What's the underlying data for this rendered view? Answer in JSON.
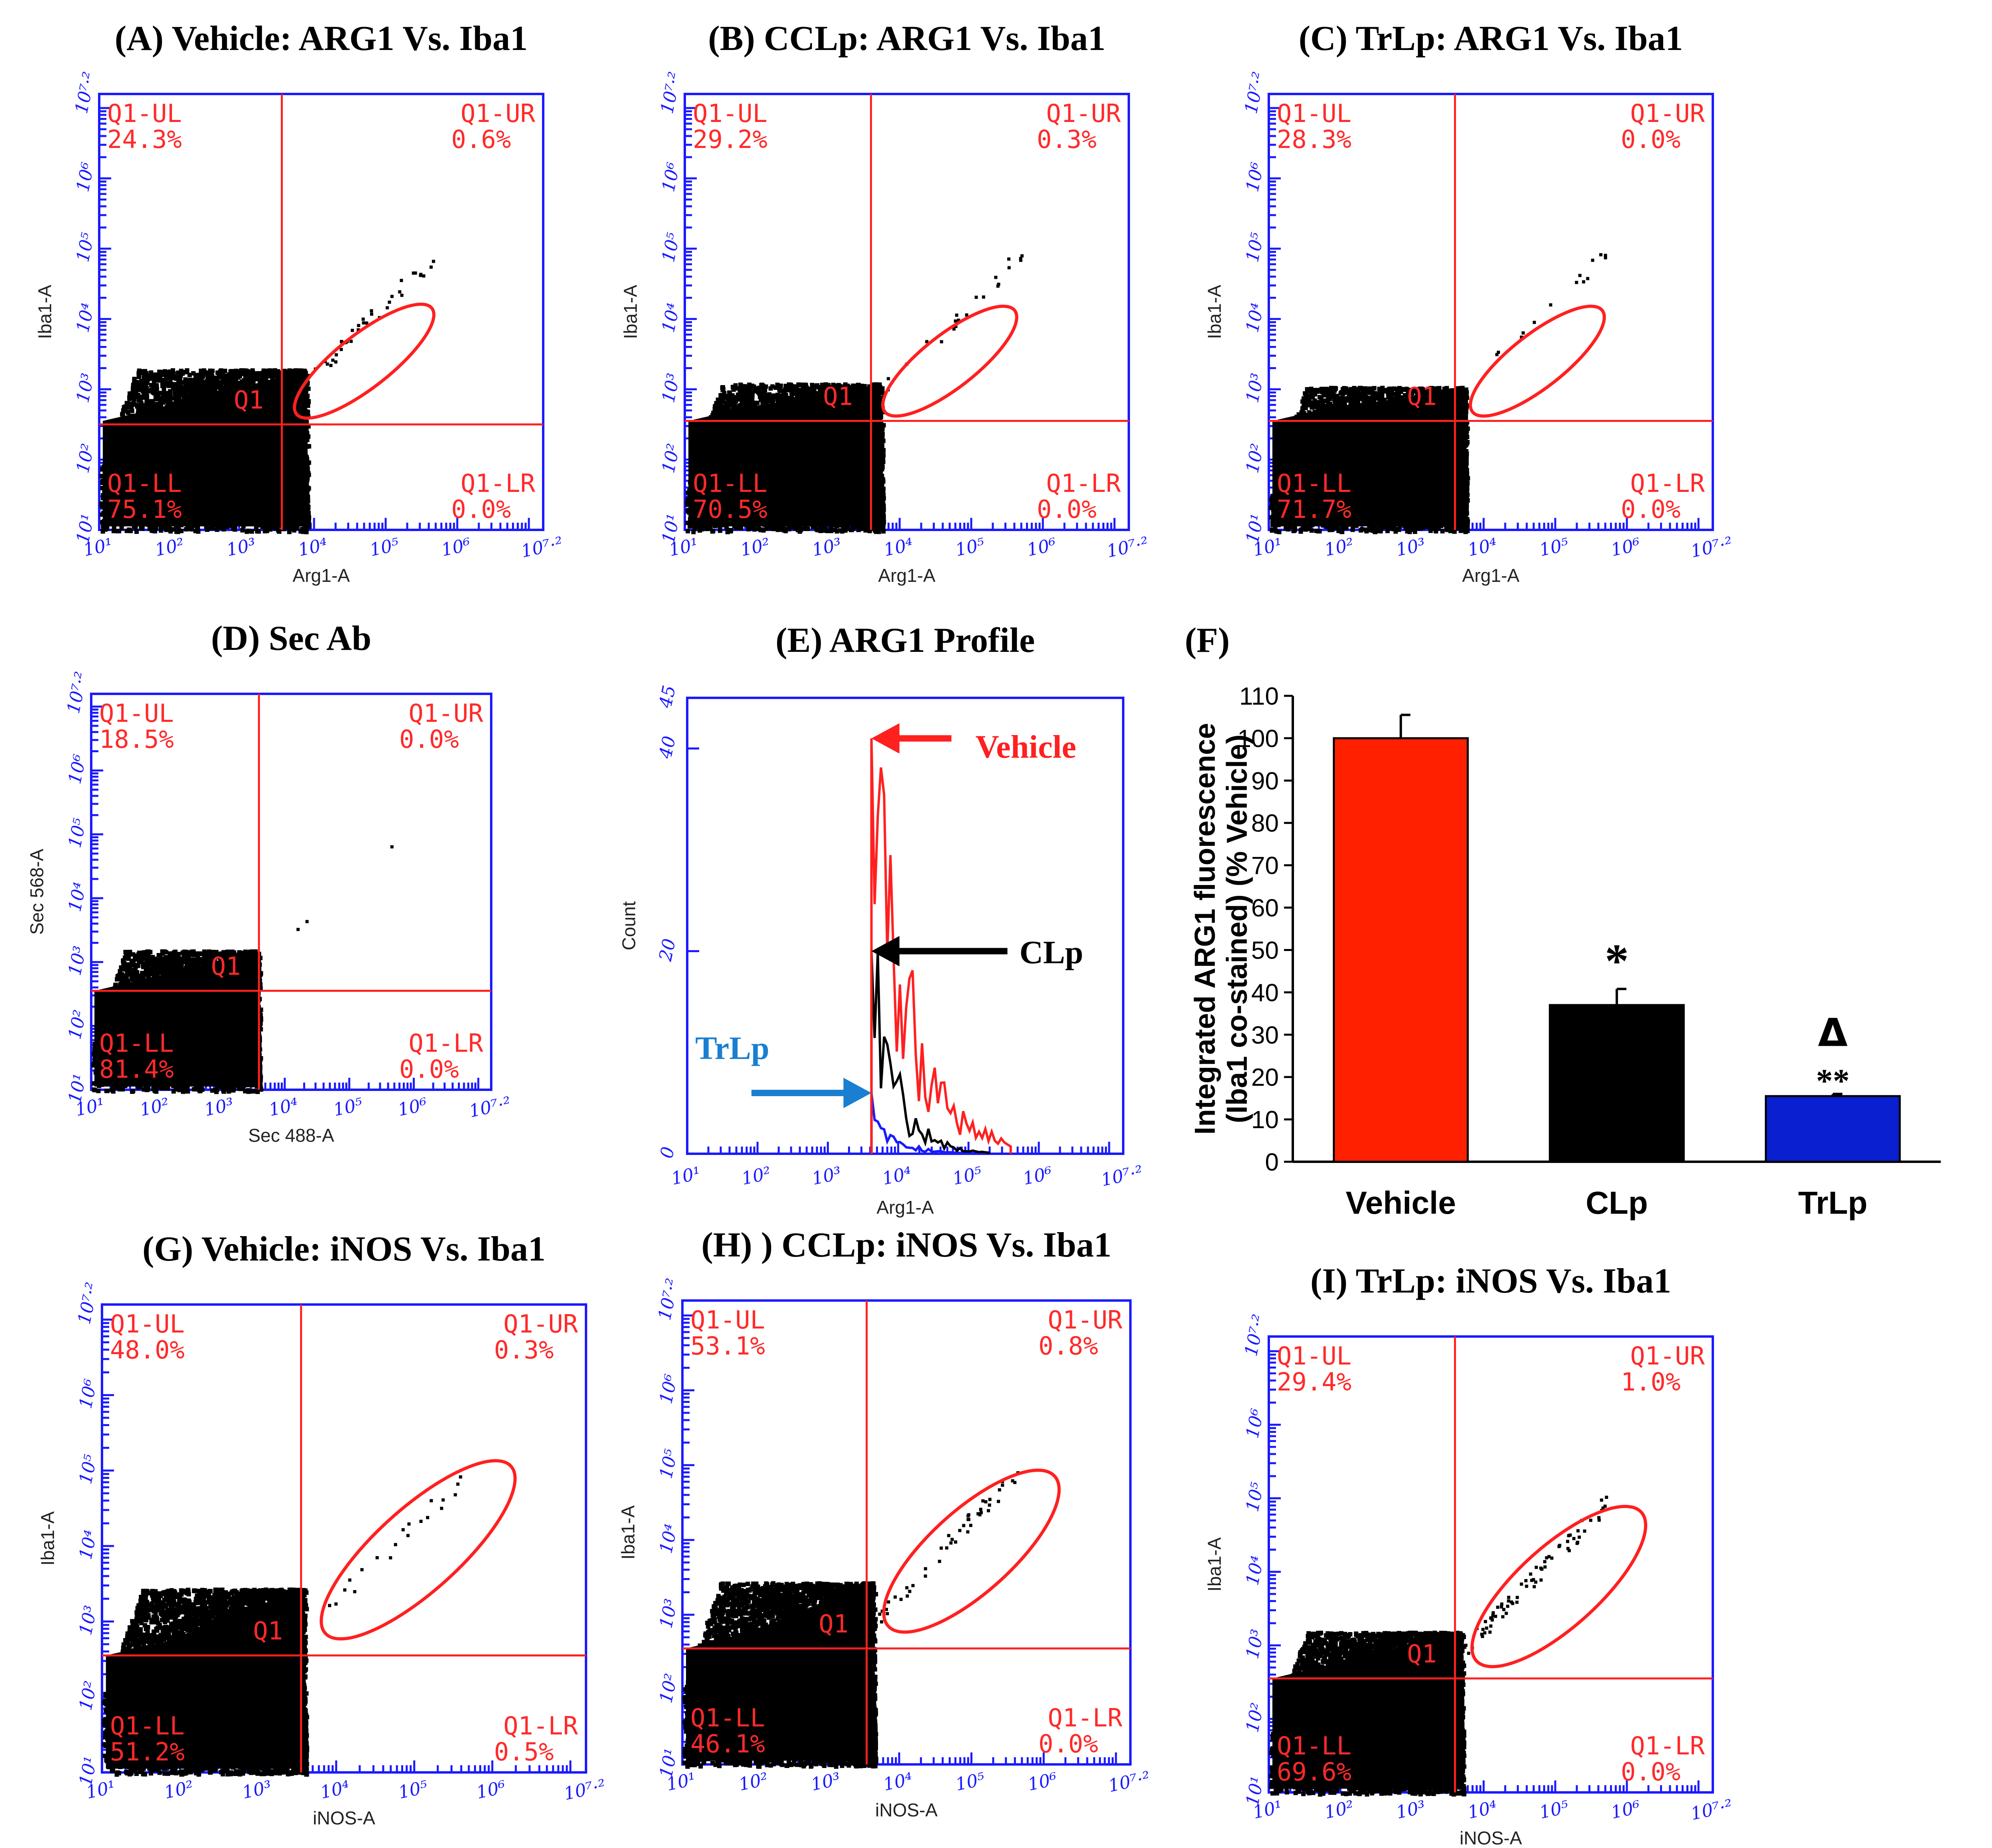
{
  "chart_data": [
    {
      "id": "A",
      "type": "scatter",
      "title": "(A) Vehicle: ARG1 Vs. Iba1",
      "xlabel": "Arg1-A",
      "ylabel": "Iba1-A",
      "xlim": [
        1,
        7.2
      ],
      "ylim": [
        1,
        7.2
      ],
      "x_ticks": [
        "10^1",
        "10^2",
        "10^3",
        "10^4",
        "10^5",
        "10^6",
        "10^7.2"
      ],
      "y_ticks": [
        "10^1",
        "10^2",
        "10^3",
        "10^4",
        "10^5",
        "10^6",
        "10^7.2"
      ],
      "gate": {
        "x": 3.55,
        "y": 2.5,
        "label": "Q1"
      },
      "quadrants": {
        "UL": {
          "name": "Q1-UL",
          "value": "24.3%"
        },
        "UR": {
          "name": "Q1-UR",
          "value": "0.6%"
        },
        "LL": {
          "name": "Q1-LL",
          "value": "75.1%"
        },
        "LR": {
          "name": "Q1-LR",
          "value": "0.0%"
        }
      },
      "ellipse": {
        "cx": 4.7,
        "cy": 3.4,
        "rx": 1.2,
        "ry": 0.38,
        "angle_deg": 38
      },
      "cloud": {
        "xmax": 3.9,
        "ytop": 3.3,
        "density": 1.0,
        "seed": 11
      },
      "diag_points": 42
    },
    {
      "id": "B",
      "type": "scatter",
      "title": "(B) CCLp: ARG1 Vs. Iba1",
      "xlabel": "Arg1-A",
      "ylabel": "Iba1-A",
      "xlim": [
        1,
        7.2
      ],
      "ylim": [
        1,
        7.2
      ],
      "x_ticks": [
        "10^1",
        "10^2",
        "10^3",
        "10^4",
        "10^5",
        "10^6",
        "10^7.2"
      ],
      "y_ticks": [
        "10^1",
        "10^2",
        "10^3",
        "10^4",
        "10^5",
        "10^6",
        "10^7.2"
      ],
      "gate": {
        "x": 3.6,
        "y": 2.55,
        "label": "Q1"
      },
      "quadrants": {
        "UL": {
          "name": "Q1-UL",
          "value": "29.2%"
        },
        "UR": {
          "name": "Q1-UR",
          "value": "0.3%"
        },
        "LL": {
          "name": "Q1-LL",
          "value": "70.5%"
        },
        "LR": {
          "name": "Q1-LR",
          "value": "0.0%"
        }
      },
      "ellipse": {
        "cx": 4.7,
        "cy": 3.4,
        "rx": 1.15,
        "ry": 0.38,
        "angle_deg": 38
      },
      "cloud": {
        "xmax": 3.75,
        "ytop": 3.1,
        "density": 0.9,
        "seed": 23
      },
      "diag_points": 22
    },
    {
      "id": "C",
      "type": "scatter",
      "title": "(C) TrLp: ARG1 Vs. Iba1",
      "xlabel": "Arg1-A",
      "ylabel": "Iba1-A",
      "xlim": [
        1,
        7.2
      ],
      "ylim": [
        1,
        7.2
      ],
      "x_ticks": [
        "10^1",
        "10^2",
        "10^3",
        "10^4",
        "10^5",
        "10^6",
        "10^7.2"
      ],
      "y_ticks": [
        "10^1",
        "10^2",
        "10^3",
        "10^4",
        "10^5",
        "10^6",
        "10^7.2"
      ],
      "gate": {
        "x": 3.6,
        "y": 2.55,
        "label": "Q1"
      },
      "quadrants": {
        "UL": {
          "name": "Q1-UL",
          "value": "28.3%"
        },
        "UR": {
          "name": "Q1-UR",
          "value": "0.0%"
        },
        "LL": {
          "name": "Q1-LL",
          "value": "71.7%"
        },
        "LR": {
          "name": "Q1-LR",
          "value": "0.0%"
        }
      },
      "ellipse": {
        "cx": 4.75,
        "cy": 3.4,
        "rx": 1.15,
        "ry": 0.38,
        "angle_deg": 38
      },
      "cloud": {
        "xmax": 3.75,
        "ytop": 3.05,
        "density": 0.9,
        "seed": 37
      },
      "diag_points": 14
    },
    {
      "id": "D",
      "type": "scatter",
      "title": "(D) Sec Ab",
      "xlabel": "Sec 488-A",
      "ylabel": "Sec 568-A",
      "xlim": [
        1,
        7.2
      ],
      "ylim": [
        1,
        7.2
      ],
      "x_ticks": [
        "10^1",
        "10^2",
        "10^3",
        "10^4",
        "10^5",
        "10^6",
        "10^7.2"
      ],
      "y_ticks": [
        "10^1",
        "10^2",
        "10^3",
        "10^4",
        "10^5",
        "10^6",
        "10^7.2"
      ],
      "gate": {
        "x": 3.6,
        "y": 2.55,
        "label": "Q1"
      },
      "quadrants": {
        "UL": {
          "name": "Q1-UL",
          "value": "18.5%"
        },
        "UR": {
          "name": "Q1-UR",
          "value": "0.0%"
        },
        "LL": {
          "name": "Q1-LL",
          "value": "81.4%"
        },
        "LR": {
          "name": "Q1-LR",
          "value": "0.0%"
        }
      },
      "ellipse": null,
      "cloud": {
        "xmax": 3.6,
        "ytop": 3.2,
        "density": 0.75,
        "seed": 51
      },
      "diag_points": 3
    },
    {
      "id": "E",
      "type": "line",
      "title": "(E) ARG1 Profile",
      "xlabel": "Arg1-A",
      "ylabel": "Count",
      "xlim": [
        1,
        7.2
      ],
      "ylim": [
        0,
        45
      ],
      "x_ticks": [
        "10^1",
        "10^2",
        "10^3",
        "10^4",
        "10^5",
        "10^6",
        "10^7.2"
      ],
      "y_ticks": [
        0,
        20,
        40,
        45
      ],
      "series": [
        {
          "name": "Vehicle",
          "color": "#ff2020",
          "peak_x": 3.62,
          "peak": 41,
          "decay": 0.55,
          "end_x": 5.6
        },
        {
          "name": "CLp",
          "color": "#000000",
          "peak_x": 3.62,
          "peak": 20,
          "decay": 0.35,
          "end_x": 5.3
        },
        {
          "name": "TrLp",
          "color": "#1a1aff",
          "peak_x": 3.62,
          "peak": 6,
          "decay": 0.3,
          "end_x": 5.2
        }
      ],
      "annotations": [
        {
          "text": "Vehicle",
          "color": "#ff2020"
        },
        {
          "text": "CLp",
          "color": "#000000"
        },
        {
          "text": "TrLp",
          "color": "#1a7fd0"
        }
      ]
    },
    {
      "id": "F",
      "type": "bar",
      "title": "(F)",
      "ylabel": "Integrated ARG1 fluorescence (Iba1 co-stained) (% Vehicle)",
      "ylabel_lines": [
        "Integrated ARG1 fluorescence",
        "(Iba1 co-stained) (% Vehicle)"
      ],
      "categories": [
        "Vehicle",
        "CLp",
        "TrLp"
      ],
      "values": [
        100,
        37,
        15.5
      ],
      "errors": [
        5.5,
        3.8,
        0.5
      ],
      "colors": [
        "#ff2000",
        "#000000",
        "#0a1fd0"
      ],
      "significance": [
        "",
        "*",
        "**"
      ],
      "extra_marks": [
        "",
        "",
        "Δ"
      ],
      "ylim": [
        0,
        110
      ],
      "y_ticks": [
        0,
        10,
        20,
        30,
        40,
        50,
        60,
        70,
        80,
        90,
        100,
        110
      ]
    },
    {
      "id": "G",
      "type": "scatter",
      "title": "(G) Vehicle: iNOS Vs. Iba1",
      "xlabel": "iNOS-A",
      "ylabel": "Iba1-A",
      "xlim": [
        1,
        7.2
      ],
      "ylim": [
        1,
        7.2
      ],
      "x_ticks": [
        "10^1",
        "10^2",
        "10^3",
        "10^4",
        "10^5",
        "10^6",
        "10^7.2"
      ],
      "y_ticks": [
        "10^1",
        "10^2",
        "10^3",
        "10^4",
        "10^5",
        "10^6",
        "10^7.2"
      ],
      "gate": {
        "x": 3.55,
        "y": 2.55,
        "label": "Q1"
      },
      "quadrants": {
        "UL": {
          "name": "Q1-UL",
          "value": "48.0%"
        },
        "UR": {
          "name": "Q1-UR",
          "value": "0.3%"
        },
        "LL": {
          "name": "Q1-LL",
          "value": "51.2%"
        },
        "LR": {
          "name": "Q1-LR",
          "value": "0.5%"
        }
      },
      "ellipse": {
        "cx": 5.05,
        "cy": 3.95,
        "rx": 1.6,
        "ry": 0.55,
        "angle_deg": 42
      },
      "cloud": {
        "xmax": 3.6,
        "ytop": 3.45,
        "density": 1.25,
        "seed": 63
      },
      "diag_points": 20
    },
    {
      "id": "H",
      "type": "scatter",
      "title": "(H) ) CCLp: iNOS Vs. Iba1",
      "xlabel": "iNOS-A",
      "ylabel": "Iba1-A",
      "xlim": [
        1,
        7.2
      ],
      "ylim": [
        1,
        7.2
      ],
      "x_ticks": [
        "10^1",
        "10^2",
        "10^3",
        "10^4",
        "10^5",
        "10^6",
        "10^7.2"
      ],
      "y_ticks": [
        "10^1",
        "10^2",
        "10^3",
        "10^4",
        "10^5",
        "10^6",
        "10^7.2"
      ],
      "gate": {
        "x": 3.55,
        "y": 2.55,
        "label": "Q1"
      },
      "quadrants": {
        "UL": {
          "name": "Q1-UL",
          "value": "53.1%"
        },
        "UR": {
          "name": "Q1-UR",
          "value": "0.8%"
        },
        "LL": {
          "name": "Q1-LL",
          "value": "46.1%"
        },
        "LR": {
          "name": "Q1-LR",
          "value": "0.0%"
        }
      },
      "ellipse": {
        "cx": 5.0,
        "cy": 3.85,
        "rx": 1.55,
        "ry": 0.55,
        "angle_deg": 42
      },
      "cloud": {
        "xmax": 3.65,
        "ytop": 3.45,
        "density": 1.2,
        "seed": 79
      },
      "diag_points": 45
    },
    {
      "id": "I",
      "type": "scatter",
      "title": "(I) TrLp: iNOS Vs. Iba1",
      "xlabel": "iNOS-A",
      "ylabel": "Iba1-A",
      "xlim": [
        1,
        7.2
      ],
      "ylim": [
        1,
        7.2
      ],
      "x_ticks": [
        "10^1",
        "10^2",
        "10^3",
        "10^4",
        "10^5",
        "10^6",
        "10^7.2"
      ],
      "y_ticks": [
        "10^1",
        "10^2",
        "10^3",
        "10^4",
        "10^5",
        "10^6",
        "10^7.2"
      ],
      "gate": {
        "x": 3.6,
        "y": 2.55,
        "label": "Q1"
      },
      "quadrants": {
        "UL": {
          "name": "Q1-UL",
          "value": "29.4%"
        },
        "UR": {
          "name": "Q1-UR",
          "value": "1.0%"
        },
        "LL": {
          "name": "Q1-LL",
          "value": "69.6%"
        },
        "LR": {
          "name": "Q1-LR",
          "value": "0.0%"
        }
      },
      "ellipse": {
        "cx": 5.05,
        "cy": 3.8,
        "rx": 1.55,
        "ry": 0.55,
        "angle_deg": 42
      },
      "cloud": {
        "xmax": 3.7,
        "ytop": 3.2,
        "density": 1.1,
        "seed": 91
      },
      "diag_points": 70
    }
  ]
}
